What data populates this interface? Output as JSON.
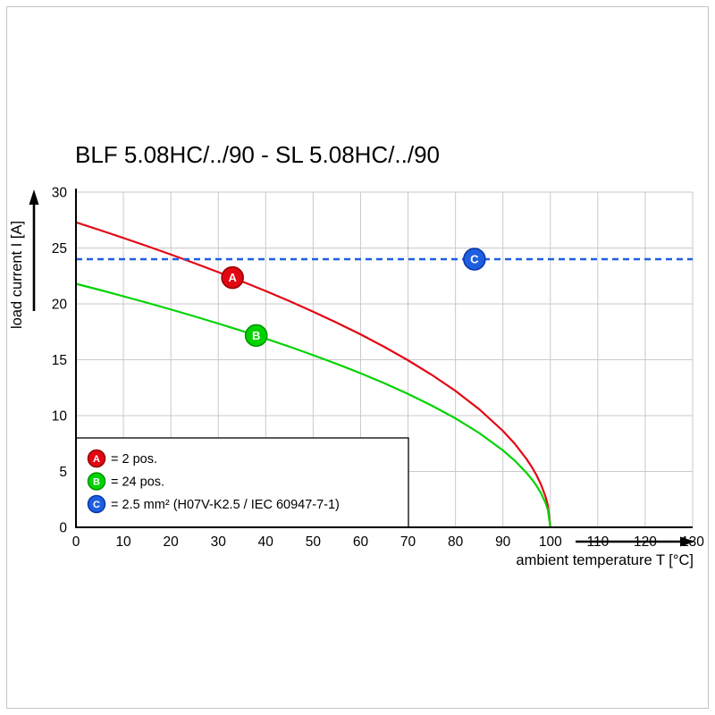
{
  "header": {
    "title": "BLF 5.08HC/../90 - SL 5.08HC/../90"
  },
  "chart_data": {
    "type": "line",
    "title": "BLF 5.08HC/../90 - SL 5.08HC/../90",
    "xlabel": "ambient temperature T [°C]",
    "ylabel": "load current I [A]",
    "xlim": [
      0,
      130
    ],
    "ylim": [
      0,
      30
    ],
    "x_ticks": [
      0,
      10,
      20,
      30,
      40,
      50,
      60,
      70,
      80,
      90,
      100,
      110,
      120,
      130
    ],
    "y_ticks": [
      0,
      5,
      10,
      15,
      20,
      25,
      30
    ],
    "grid": true,
    "legend_position": "bottom-left-inside",
    "colors": {
      "grid": "#c9c9c9",
      "axis": "#000000",
      "background": "#ffffff"
    },
    "series": [
      {
        "id": "A",
        "name": "= 2 pos.",
        "style": "solid",
        "color": "#e30613",
        "dark": "#960000",
        "marker": {
          "x": 33,
          "y": 22.35
        },
        "points": [
          [
            0,
            27.3
          ],
          [
            5,
            26.61
          ],
          [
            10,
            25.9
          ],
          [
            15,
            25.17
          ],
          [
            20,
            24.42
          ],
          [
            25,
            23.64
          ],
          [
            30,
            22.84
          ],
          [
            35,
            22.01
          ],
          [
            40,
            21.15
          ],
          [
            45,
            20.25
          ],
          [
            50,
            19.3
          ],
          [
            55,
            18.31
          ],
          [
            60,
            17.27
          ],
          [
            65,
            16.15
          ],
          [
            70,
            14.95
          ],
          [
            75,
            13.65
          ],
          [
            80,
            12.21
          ],
          [
            85,
            10.57
          ],
          [
            90,
            8.63
          ],
          [
            92.5,
            7.48
          ],
          [
            95,
            6.1
          ],
          [
            96,
            5.46
          ],
          [
            97,
            4.73
          ],
          [
            98,
            3.86
          ],
          [
            99,
            2.73
          ],
          [
            99.5,
            1.93
          ],
          [
            100,
            0
          ]
        ]
      },
      {
        "id": "B",
        "name": "= 24 pos.",
        "style": "solid",
        "color": "#00d300",
        "dark": "#009300",
        "marker": {
          "x": 38,
          "y": 17.17
        },
        "points": [
          [
            0,
            21.8
          ],
          [
            5,
            21.25
          ],
          [
            10,
            20.68
          ],
          [
            15,
            20.1
          ],
          [
            20,
            19.5
          ],
          [
            25,
            18.88
          ],
          [
            30,
            18.24
          ],
          [
            35,
            17.58
          ],
          [
            40,
            16.89
          ],
          [
            45,
            16.17
          ],
          [
            50,
            15.41
          ],
          [
            55,
            14.62
          ],
          [
            60,
            13.79
          ],
          [
            65,
            12.9
          ],
          [
            70,
            11.94
          ],
          [
            75,
            10.9
          ],
          [
            80,
            9.75
          ],
          [
            85,
            8.44
          ],
          [
            90,
            6.89
          ],
          [
            92.5,
            5.97
          ],
          [
            95,
            4.87
          ],
          [
            96,
            4.36
          ],
          [
            97,
            3.78
          ],
          [
            98,
            3.08
          ],
          [
            99,
            2.18
          ],
          [
            99.5,
            1.54
          ],
          [
            100,
            0
          ]
        ]
      },
      {
        "id": "C",
        "name": "= 2.5 mm² (H07V-K2.5 / IEC 60947-7-1)",
        "style": "dashed",
        "color": "#1e5fe0",
        "dark": "#0a38a8",
        "marker": {
          "x": 84,
          "y": 24
        },
        "points": [
          [
            0,
            24
          ],
          [
            130,
            24
          ]
        ]
      }
    ]
  }
}
